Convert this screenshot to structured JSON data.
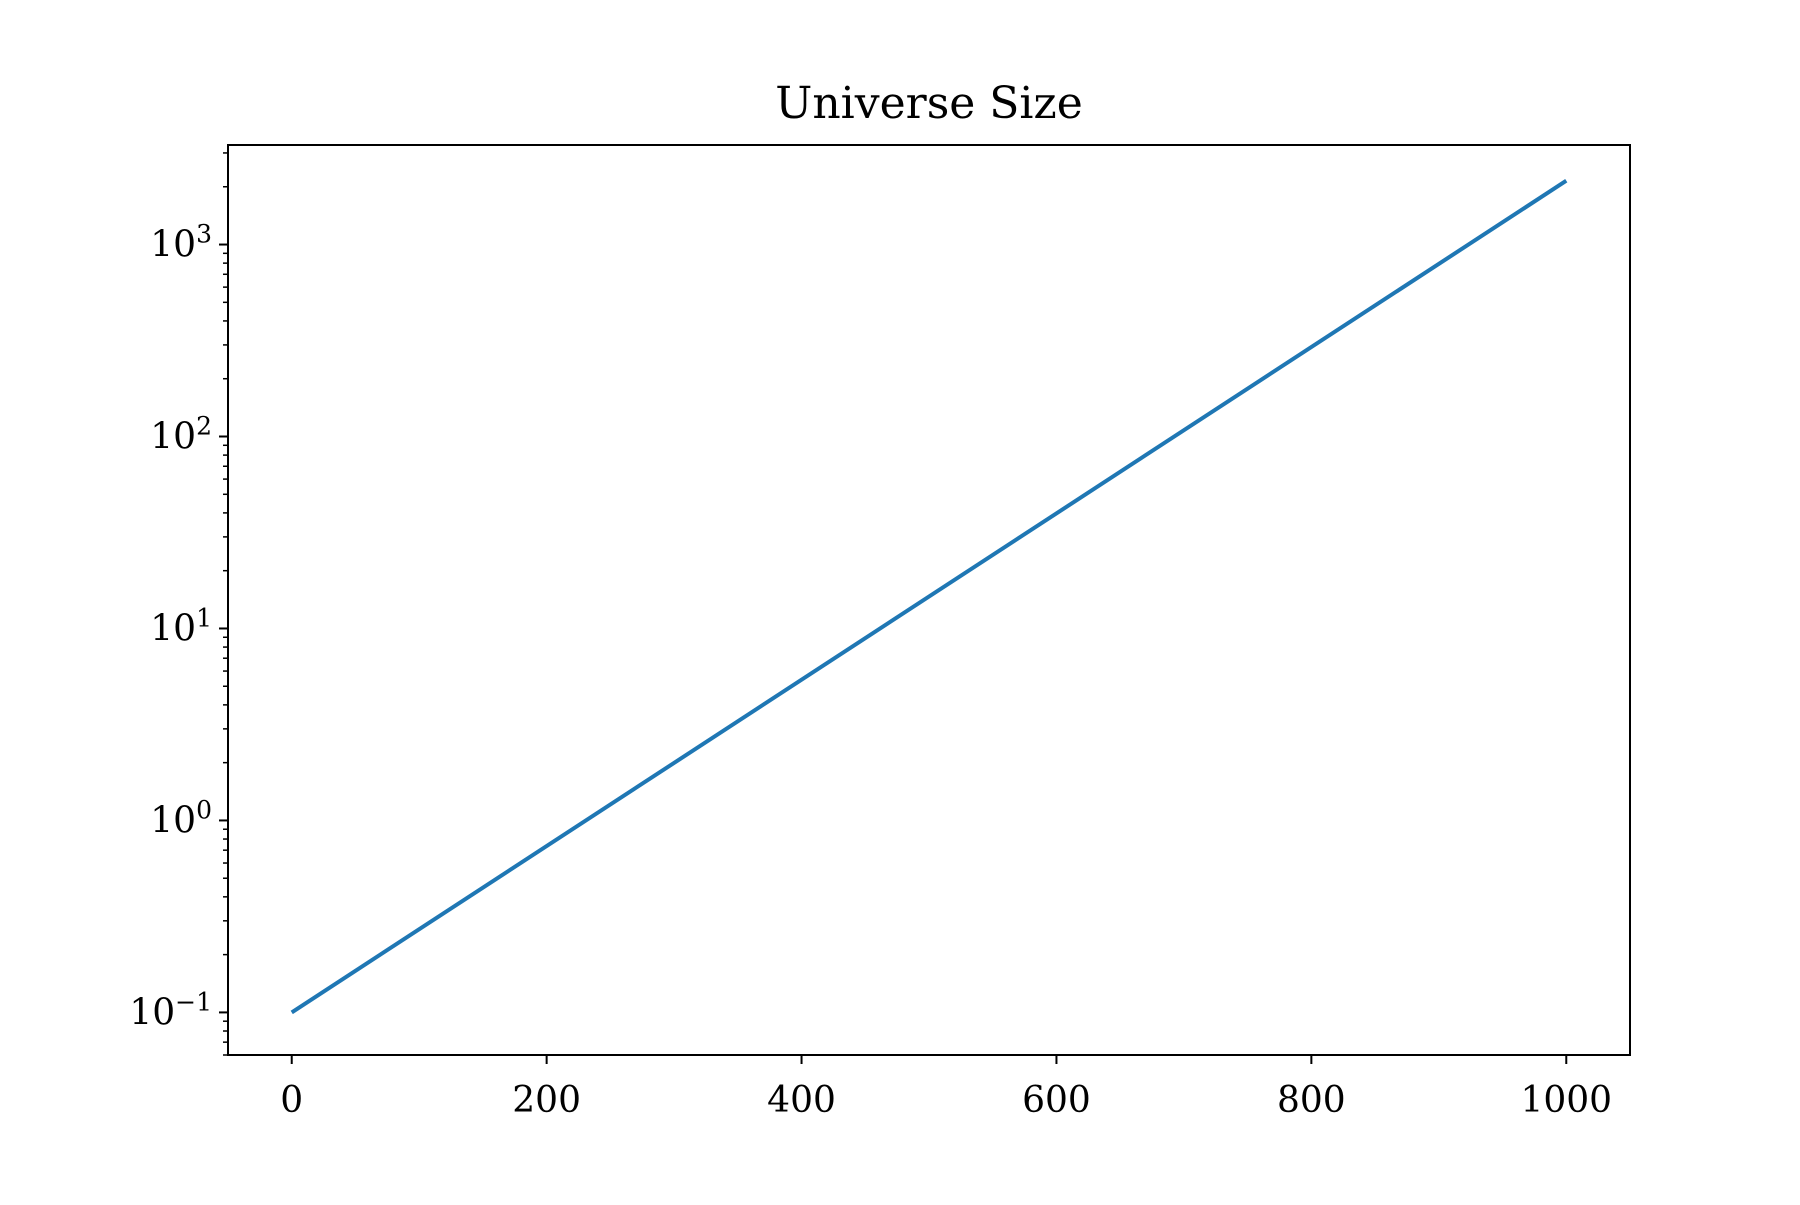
{
  "chart_data": {
    "type": "line",
    "title": "Universe Size",
    "xlabel": "",
    "ylabel": "",
    "y_scale": "log",
    "xlim": [
      -50,
      1050
    ],
    "ylim": [
      0.06,
      3300
    ],
    "x_ticks": [
      0,
      200,
      400,
      600,
      800,
      1000
    ],
    "x_tick_labels": [
      "0",
      "200",
      "400",
      "600",
      "800",
      "1000"
    ],
    "y_ticks": [
      {
        "value": 0.1,
        "base": "10",
        "exponent": "−1"
      },
      {
        "value": 1,
        "base": "10",
        "exponent": "0"
      },
      {
        "value": 10,
        "base": "10",
        "exponent": "1"
      },
      {
        "value": 100,
        "base": "10",
        "exponent": "2"
      },
      {
        "value": 1000,
        "base": "10",
        "exponent": "3"
      }
    ],
    "grid": false,
    "legend": "none",
    "series": [
      {
        "color": "#1f77b4",
        "x": [
          0,
          1000
        ],
        "y": [
          0.1,
          2150
        ]
      }
    ]
  }
}
